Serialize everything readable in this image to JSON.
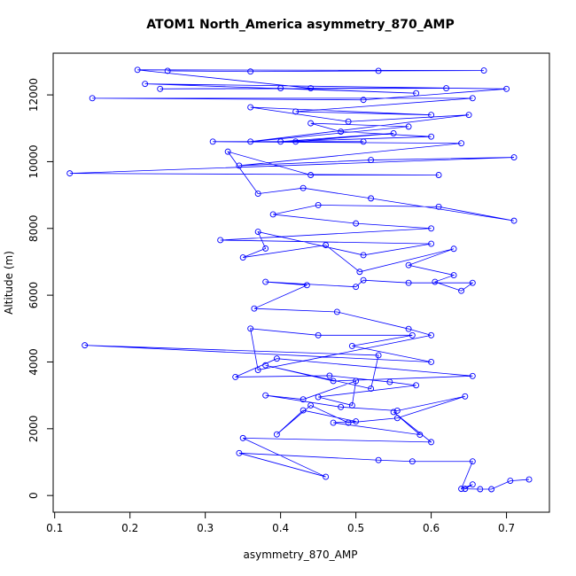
{
  "chart_data": {
    "type": "line",
    "title": "ATOM1 North_America asymmetry_870_AMP",
    "x_label": "asymmetry_870_AMP",
    "y_label": "Altitude (m)",
    "color": "#0000ff",
    "x": [
      0.73,
      0.705,
      0.68,
      0.665,
      0.645,
      0.655,
      0.64,
      0.655,
      0.575,
      0.53,
      0.345,
      0.46,
      0.35,
      0.6,
      0.55,
      0.585,
      0.47,
      0.5,
      0.43,
      0.395,
      0.44,
      0.49,
      0.555,
      0.645,
      0.555,
      0.48,
      0.38,
      0.43,
      0.5,
      0.495,
      0.45,
      0.58,
      0.545,
      0.465,
      0.34,
      0.395,
      0.655,
      0.47,
      0.38,
      0.52,
      0.53,
      0.14,
      0.6,
      0.495,
      0.575,
      0.45,
      0.36,
      0.37,
      0.6,
      0.57,
      0.475,
      0.365,
      0.435,
      0.38,
      0.5,
      0.51,
      0.57,
      0.655,
      0.64,
      0.605,
      0.63,
      0.57,
      0.63,
      0.505,
      0.46,
      0.35,
      0.38,
      0.37,
      0.51,
      0.6,
      0.32,
      0.6,
      0.5,
      0.39,
      0.45,
      0.61,
      0.71,
      0.52,
      0.43,
      0.37,
      0.33,
      0.44,
      0.61,
      0.12,
      0.71,
      0.52,
      0.345,
      0.64,
      0.31,
      0.51,
      0.42,
      0.55,
      0.4,
      0.6,
      0.48,
      0.44,
      0.57,
      0.36,
      0.65,
      0.49,
      0.36,
      0.6,
      0.42,
      0.655,
      0.15,
      0.51,
      0.7,
      0.22,
      0.58,
      0.4,
      0.24,
      0.62,
      0.44,
      0.21,
      0.67,
      0.53,
      0.36,
      0.25
    ],
    "values": [
      480,
      440,
      190,
      190,
      200,
      330,
      200,
      1020,
      1020,
      1060,
      1270,
      560,
      1720,
      1600,
      2500,
      1820,
      2180,
      2220,
      2550,
      1830,
      2700,
      2180,
      2320,
      2970,
      2540,
      2650,
      3000,
      2880,
      3430,
      2700,
      2950,
      3300,
      3400,
      3590,
      3550,
      4100,
      3580,
      3430,
      3900,
      3200,
      4200,
      4500,
      4000,
      4480,
      4800,
      4800,
      5000,
      3760,
      4800,
      4990,
      5500,
      5600,
      6300,
      6400,
      6250,
      6450,
      6370,
      6370,
      6130,
      6400,
      6600,
      6900,
      7390,
      6700,
      7500,
      7130,
      7400,
      7900,
      7200,
      7540,
      7650,
      8000,
      8150,
      8420,
      8700,
      8650,
      8230,
      8900,
      9210,
      9040,
      10300,
      9600,
      9600,
      9650,
      10130,
      10050,
      9880,
      10550,
      10600,
      10600,
      10600,
      10850,
      10600,
      10750,
      10900,
      11150,
      11050,
      10600,
      11400,
      11200,
      11630,
      11400,
      11500,
      11900,
      11900,
      11850,
      12180,
      12330,
      12050,
      12200,
      12180,
      12200,
      12200,
      12750,
      12730,
      12720,
      12700,
      12720
    ],
    "xlim": [
      0.098,
      0.757
    ],
    "ylim": [
      -500,
      13250
    ],
    "xticks": [
      0.1,
      0.2,
      0.3,
      0.4,
      0.5,
      0.6,
      0.7
    ],
    "yticks": [
      0,
      2000,
      4000,
      6000,
      8000,
      10000,
      12000
    ]
  }
}
